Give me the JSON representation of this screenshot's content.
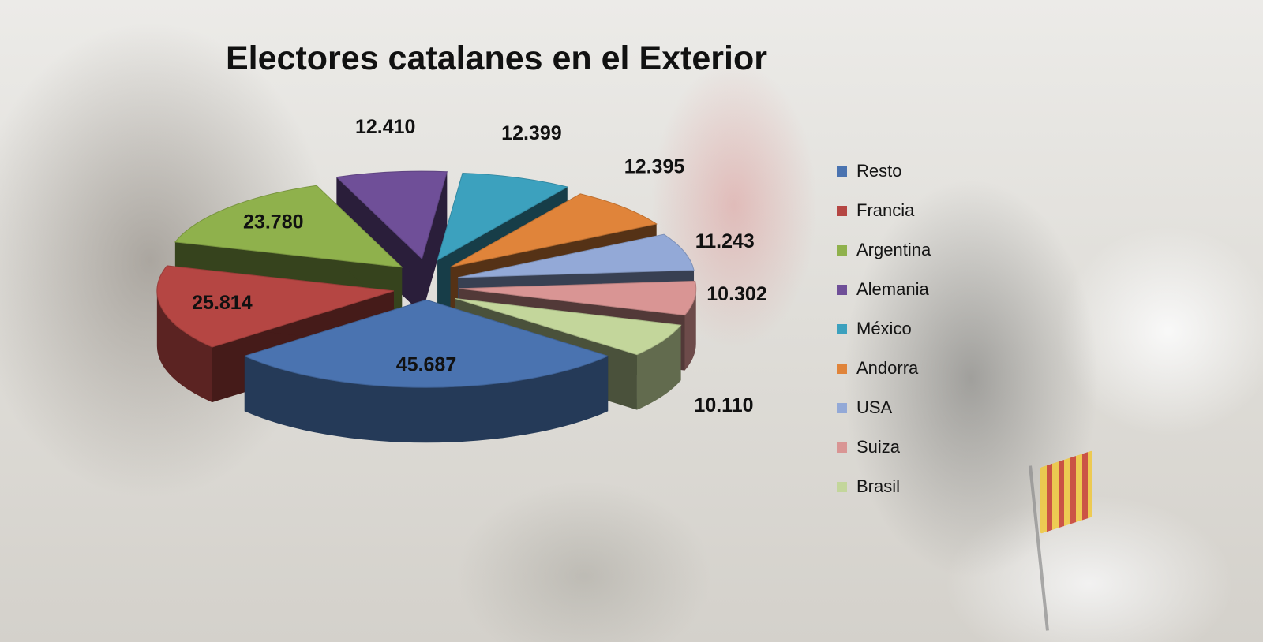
{
  "chart_data": {
    "type": "pie",
    "title": "Electores catalanes en el Exterior",
    "categories": [
      "Resto",
      "Francia",
      "Argentina",
      "Alemania",
      "México",
      "Andorra",
      "USA",
      "Suiza",
      "Brasil"
    ],
    "values": [
      45687,
      25814,
      23780,
      12410,
      12399,
      12395,
      11243,
      10302,
      10110
    ],
    "value_labels": [
      "45.687",
      "25.814",
      "23.780",
      "12.410",
      "12.399",
      "12.395",
      "11.243",
      "10.302",
      "10.110"
    ],
    "colors": [
      "#4a73b0",
      "#b54643",
      "#8fb14c",
      "#6f4f98",
      "#3ca1be",
      "#e0843a",
      "#93a9d7",
      "#d99594",
      "#c3d69b"
    ],
    "legend_position": "right",
    "exploded": true,
    "style": "3d"
  }
}
